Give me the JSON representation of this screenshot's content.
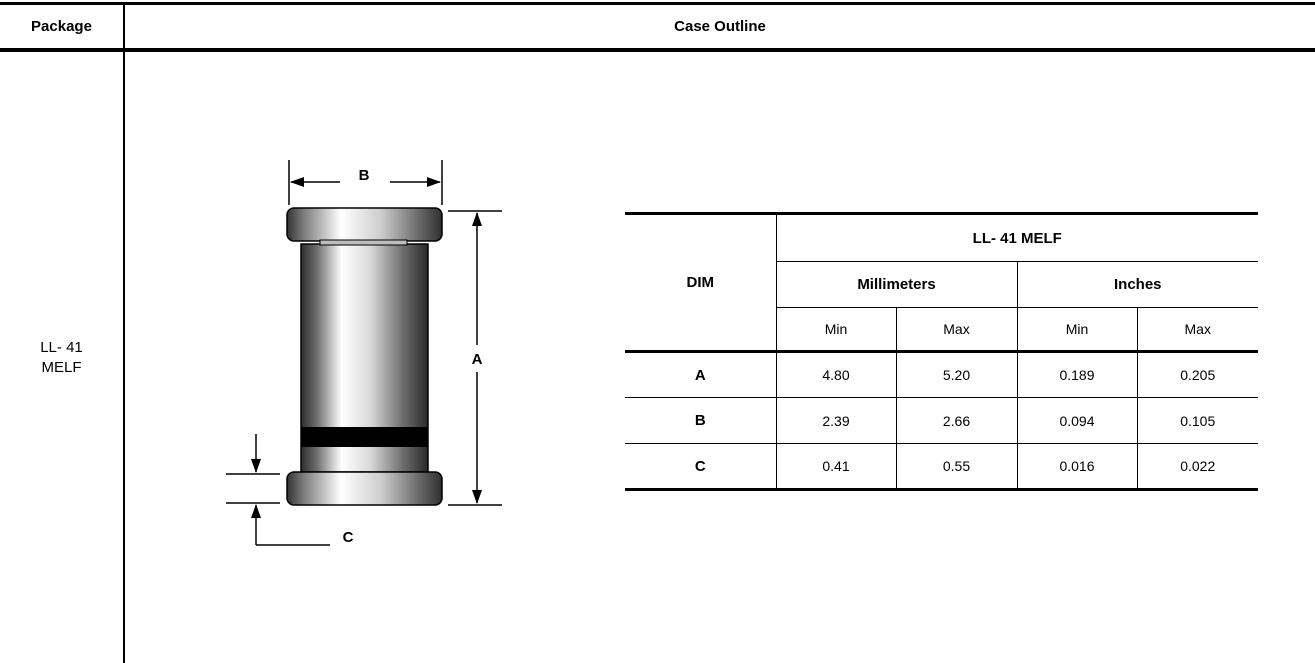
{
  "header": {
    "package": "Package",
    "case_outline": "Case Outline"
  },
  "package_name": {
    "line1": "LL- 41",
    "line2": "MELF"
  },
  "drawing_labels": {
    "a": "A",
    "b": "B",
    "c": "C"
  },
  "table": {
    "dim_header": "DIM",
    "package_header": "LL- 41 MELF",
    "mm_header": "Millimeters",
    "in_header": "Inches",
    "min": "Min",
    "max": "Max",
    "rows": [
      {
        "dim": "A",
        "mm_min": "4.80",
        "mm_max": "5.20",
        "in_min": "0.189",
        "in_max": "0.205"
      },
      {
        "dim": "B",
        "mm_min": "2.39",
        "mm_max": "2.66",
        "in_min": "0.094",
        "in_max": "0.105"
      },
      {
        "dim": "C",
        "mm_min": "0.41",
        "mm_max": "0.55",
        "in_min": "0.016",
        "in_max": "0.022"
      }
    ]
  },
  "colors": {
    "rule": "#000000",
    "cathode_band": "#000000",
    "body_dark": "#3a3a3a",
    "body_light": "#ffffff"
  }
}
